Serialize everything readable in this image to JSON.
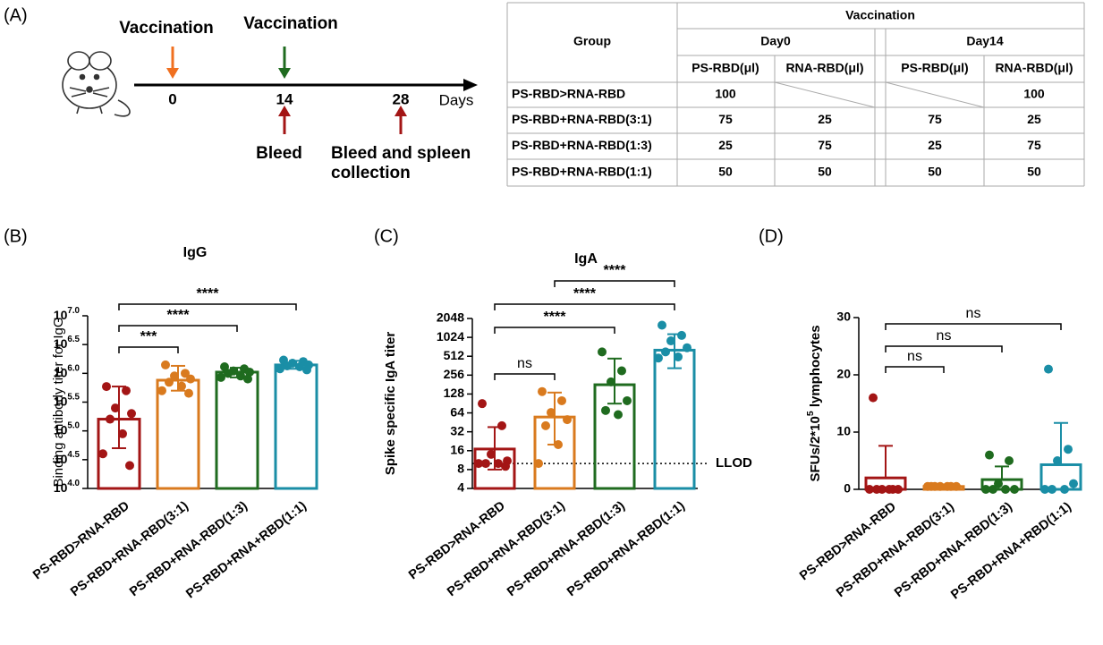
{
  "panel_labels": [
    "(A)",
    "(B)",
    "(C)",
    "(D)"
  ],
  "timeline": {
    "vaccinations": [
      "Vaccination",
      "Vaccination"
    ],
    "ticks": [
      0,
      14,
      28
    ],
    "unit": "Days",
    "bleeds": [
      [
        "Bleed"
      ],
      [
        "Bleed and spleen",
        "collection"
      ]
    ]
  },
  "table": {
    "group_header": "Group",
    "vaccination_header": "Vaccination",
    "days": [
      "Day0",
      "Day14"
    ],
    "columns": [
      "PS-RBD(μl)",
      "RNA-RBD(μl)",
      "PS-RBD(μl)",
      "RNA-RBD(μl)"
    ],
    "rows": [
      [
        "PS-RBD>RNA-RBD",
        100,
        null,
        null,
        100
      ],
      [
        "PS-RBD+RNA-RBD(3:1)",
        75,
        25,
        75,
        25
      ],
      [
        "PS-RBD+RNA-RBD(1:3)",
        25,
        75,
        25,
        75
      ],
      [
        "PS-RBD+RNA-RBD(1:1)",
        50,
        50,
        50,
        50
      ]
    ]
  },
  "chart_data": [
    {
      "type": "bar",
      "title": "IgG",
      "ylabel": "Binding antibody titer for IgG",
      "scale": "log",
      "ylim": [
        10000,
        10000000
      ],
      "yticks": [
        {
          "value": 10000,
          "label": "10^4.0"
        },
        {
          "value": 31623,
          "label": "10^4.5"
        },
        {
          "value": 100000,
          "label": "10^5.0"
        },
        {
          "value": 316228,
          "label": "10^5.5"
        },
        {
          "value": 1000000,
          "label": "10^6.0"
        },
        {
          "value": 3162278,
          "label": "10^6.5"
        },
        {
          "value": 10000000,
          "label": "10^7.0"
        }
      ],
      "categories": [
        "PS-RBD>RNA-RBD",
        "PS-RBD+RNA-RBD(3:1)",
        "PS-RBD+RNA-RBD(1:3)",
        "PS-RBD+RNA+RBD(1:1)"
      ],
      "colors": [
        "#a31515",
        "#d97a1e",
        "#1f6b1f",
        "#1a8ea6"
      ],
      "values": [
        160000,
        760000,
        1050000,
        1400000
      ],
      "err_low": [
        50000,
        500000,
        850000,
        1200000
      ],
      "err_high": [
        590000,
        1350000,
        1250000,
        1650000
      ],
      "points": [
        [
          590000,
          500000,
          250000,
          200000,
          160000,
          89000,
          40000,
          25000
        ],
        [
          1400000,
          1000000,
          900000,
          800000,
          700000,
          600000,
          500000,
          450000
        ],
        [
          1300000,
          1200000,
          1100000,
          1050000,
          1000000,
          900000,
          850000,
          800000
        ],
        [
          1700000,
          1600000,
          1500000,
          1400000,
          1350000,
          1300000,
          1200000,
          1150000
        ]
      ],
      "comparisons": [
        {
          "groups": [
            0,
            1
          ],
          "label": "***"
        },
        {
          "groups": [
            0,
            2
          ],
          "label": "****"
        },
        {
          "groups": [
            0,
            3
          ],
          "label": "****"
        }
      ]
    },
    {
      "type": "bar",
      "title": "IgA",
      "ylabel": "Spike specific IgA titer",
      "scale": "log",
      "ylim": [
        4,
        2048
      ],
      "yticks": [
        4,
        8,
        16,
        32,
        64,
        128,
        256,
        512,
        1024,
        2048
      ],
      "reference_line": {
        "value": 10,
        "label": "LLOD"
      },
      "categories": [
        "PS-RBD>RNA-RBD",
        "PS-RBD+RNA-RBD(3:1)",
        "PS-RBD+RNA-RBD(1:3)",
        "PS-RBD+RNA-RBD(1:1)"
      ],
      "colors": [
        "#a31515",
        "#d97a1e",
        "#1f6b1f",
        "#1a8ea6"
      ],
      "values": [
        17,
        55,
        180,
        640
      ],
      "err_low": [
        8,
        20,
        90,
        330
      ],
      "err_high": [
        38,
        135,
        470,
        1150
      ],
      "points": [
        [
          90,
          40,
          14,
          11,
          10,
          10,
          10,
          9
        ],
        [
          140,
          100,
          65,
          50,
          40,
          20,
          10
        ],
        [
          600,
          300,
          200,
          100,
          70,
          60
        ],
        [
          1600,
          1100,
          900,
          700,
          600,
          500,
          480
        ]
      ],
      "comparisons": [
        {
          "groups": [
            0,
            1
          ],
          "label": "ns"
        },
        {
          "groups": [
            0,
            2
          ],
          "label": "****"
        },
        {
          "groups": [
            0,
            3
          ],
          "label": "****"
        },
        {
          "groups": [
            1,
            3
          ],
          "label": "****"
        }
      ]
    },
    {
      "type": "bar",
      "ylabel": "SFUs/2*10^5 lymphocytes",
      "scale": "linear",
      "ylim": [
        0,
        30
      ],
      "yticks": [
        0,
        10,
        20,
        30
      ],
      "categories": [
        "PS-RBD>RNA-RBD",
        "PS-RBD+RNA-RBD(3:1)",
        "PS-RBD+RNA-RBD(1:3)",
        "PS-RBD+RNA+RBD(1:1)"
      ],
      "colors": [
        "#a31515",
        "#d97a1e",
        "#1f6b1f",
        "#1a8ea6"
      ],
      "values": [
        2,
        0.5,
        1.7,
        4.3
      ],
      "err_high": [
        7.6,
        0.8,
        4,
        11.6
      ],
      "points": [
        [
          16,
          0,
          0,
          0,
          0,
          0,
          0
        ],
        [
          0.5,
          0.5,
          0.5,
          0.5,
          0.5,
          0.5,
          0.5
        ],
        [
          6,
          5,
          1,
          0,
          0,
          0,
          0
        ],
        [
          21,
          7,
          5,
          1,
          0,
          0,
          0
        ]
      ],
      "comparisons": [
        {
          "groups": [
            0,
            1
          ],
          "label": "ns"
        },
        {
          "groups": [
            0,
            2
          ],
          "label": "ns"
        },
        {
          "groups": [
            0,
            3
          ],
          "label": "ns"
        }
      ]
    }
  ]
}
